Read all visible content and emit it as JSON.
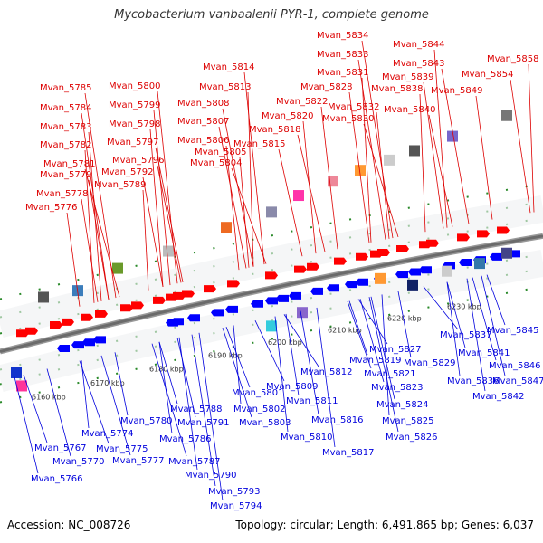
{
  "title": "Mycobacterium vanbaalenii PYR-1, complete genome",
  "footer": {
    "accession": "Accession: NC_008726",
    "summary": "Topology: circular; Length: 6,491,865 bp; Genes: 6,037"
  },
  "colors": {
    "top_label": "#dd0000",
    "bottom_label": "#0000dd",
    "forward_gene": "#ff0000",
    "reverse_gene": "#0000ff"
  },
  "kbp_ticks": [
    "6160 kbp",
    "6170 kbp",
    "6180 kbp",
    "6190 kbp",
    "6200 kbp",
    "6210 kbp",
    "6220 kbp",
    "6230 kbp"
  ],
  "top_labels": [
    "Mvan_5776",
    "Mvan_5778",
    "Mvan_5779",
    "Mvan_5781",
    "Mvan_5782",
    "Mvan_5783",
    "Mvan_5784",
    "Mvan_5785",
    "Mvan_5789",
    "Mvan_5792",
    "Mvan_5796",
    "Mvan_5797",
    "Mvan_5798",
    "Mvan_5799",
    "Mvan_5800",
    "Mvan_5804",
    "Mvan_5805",
    "Mvan_5806",
    "Mvan_5807",
    "Mvan_5808",
    "Mvan_5813",
    "Mvan_5814",
    "Mvan_5815",
    "Mvan_5818",
    "Mvan_5820",
    "Mvan_5822",
    "Mvan_5828",
    "Mvan_5830",
    "Mvan_5831",
    "Mvan_5832",
    "Mvan_5833",
    "Mvan_5834",
    "Mvan_5838",
    "Mvan_5839",
    "Mvan_5840",
    "Mvan_5843",
    "Mvan_5844",
    "Mvan_5849",
    "Mvan_5854",
    "Mvan_5858"
  ],
  "bottom_labels": [
    "Mvan_5766",
    "Mvan_5767",
    "Mvan_5770",
    "Mvan_5774",
    "Mvan_5775",
    "Mvan_5777",
    "Mvan_5780",
    "Mvan_5786",
    "Mvan_5787",
    "Mvan_5788",
    "Mvan_5790",
    "Mvan_5791",
    "Mvan_5793",
    "Mvan_5794",
    "Mvan_5801",
    "Mvan_5802",
    "Mvan_5803",
    "Mvan_5809",
    "Mvan_5810",
    "Mvan_5811",
    "Mvan_5812",
    "Mvan_5816",
    "Mvan_5817",
    "Mvan_5819",
    "Mvan_5821",
    "Mvan_5823",
    "Mvan_5824",
    "Mvan_5825",
    "Mvan_5826",
    "Mvan_5827",
    "Mvan_5829",
    "Mvan_5836",
    "Mvan_5837",
    "Mvan_5841",
    "Mvan_5842",
    "Mvan_5845",
    "Mvan_5846",
    "Mvan_5847"
  ]
}
